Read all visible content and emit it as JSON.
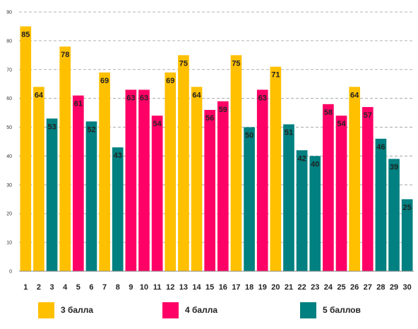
{
  "chart_data": {
    "type": "bar",
    "title": "",
    "xlabel": "",
    "ylabel": "",
    "ylim": [
      0,
      90
    ],
    "yticks": [
      0,
      10,
      20,
      30,
      40,
      50,
      60,
      70,
      80,
      90
    ],
    "grid": "horizontal-dashed",
    "legend_position": "bottom",
    "categories": [
      "1",
      "2",
      "3",
      "4",
      "5",
      "6",
      "7",
      "8",
      "9",
      "10",
      "11",
      "12",
      "13",
      "14",
      "15",
      "16",
      "17",
      "18",
      "19",
      "20",
      "21",
      "22",
      "23",
      "24",
      "25",
      "26",
      "27",
      "28",
      "29",
      "30"
    ],
    "values": [
      85,
      64,
      53,
      78,
      61,
      52,
      69,
      43,
      63,
      63,
      54,
      69,
      75,
      64,
      56,
      59,
      75,
      50,
      63,
      71,
      51,
      42,
      40,
      58,
      54,
      64,
      57,
      46,
      39,
      25
    ],
    "groups": [
      3,
      3,
      5,
      3,
      4,
      5,
      3,
      5,
      4,
      4,
      4,
      3,
      3,
      3,
      4,
      4,
      3,
      5,
      4,
      3,
      5,
      5,
      5,
      4,
      4,
      3,
      4,
      5,
      5,
      5
    ],
    "legend": [
      {
        "group": 3,
        "label": "3 балла",
        "color": "#FFC000"
      },
      {
        "group": 4,
        "label": "4 балла",
        "color": "#FF0066"
      },
      {
        "group": 5,
        "label": "5 баллов",
        "color": "#008080"
      }
    ]
  }
}
